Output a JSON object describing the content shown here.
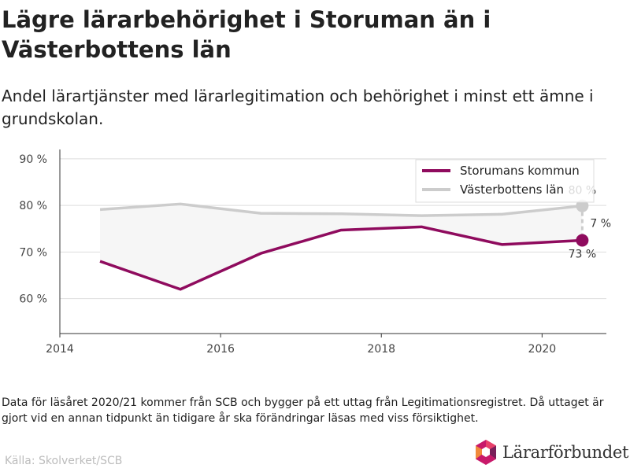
{
  "title": "Lägre lärarbehörighet i Storuman än i Västerbottens län",
  "subtitle": "Andel lärartjänster med lärarlegitimation och behörighet i minst ett ämne i grundskolan.",
  "footnote": "Data för läsåret 2020/21 kommer från SCB och bygger på ett uttag från Legitimationsregistret. Då uttaget är gjort vid en annan tidpunkt än tidigare år ska förändringar läsas med viss försiktighet.",
  "source": "Källa: Skolverket/SCB",
  "logo": {
    "text": "Lärarförbundet",
    "colors": [
      "#c8196a",
      "#e8406a",
      "#7a1f5a",
      "#f08a3c"
    ]
  },
  "chart_data": {
    "type": "line",
    "x": [
      2014.5,
      2015.5,
      2016.5,
      2017.5,
      2018.5,
      2019.5,
      2020.5
    ],
    "xlim": [
      2014,
      2020.8
    ],
    "ylim": [
      52.5,
      92
    ],
    "yticks": [
      60,
      70,
      80,
      90
    ],
    "ytick_labels": [
      "60 %",
      "70 %",
      "80 %",
      "90 %"
    ],
    "xticks": [
      2014,
      2016,
      2018,
      2020
    ],
    "xtick_labels": [
      "2014",
      "2016",
      "2018",
      "2020"
    ],
    "grid": true,
    "legend_position": "top-right",
    "series": [
      {
        "name": "Storumans kommun",
        "color": "#8f0b5e",
        "values": [
          68,
          62,
          69.7,
          74.7,
          75.4,
          71.6,
          72.5
        ]
      },
      {
        "name": "Västerbottens län",
        "color": "#cccccc",
        "values": [
          79.1,
          80.3,
          78.3,
          78.2,
          77.8,
          78.1,
          79.9
        ]
      }
    ],
    "annotations": {
      "last_storuman": "73 %",
      "last_vasterbotten": "80 %",
      "difference": "7 %"
    }
  }
}
